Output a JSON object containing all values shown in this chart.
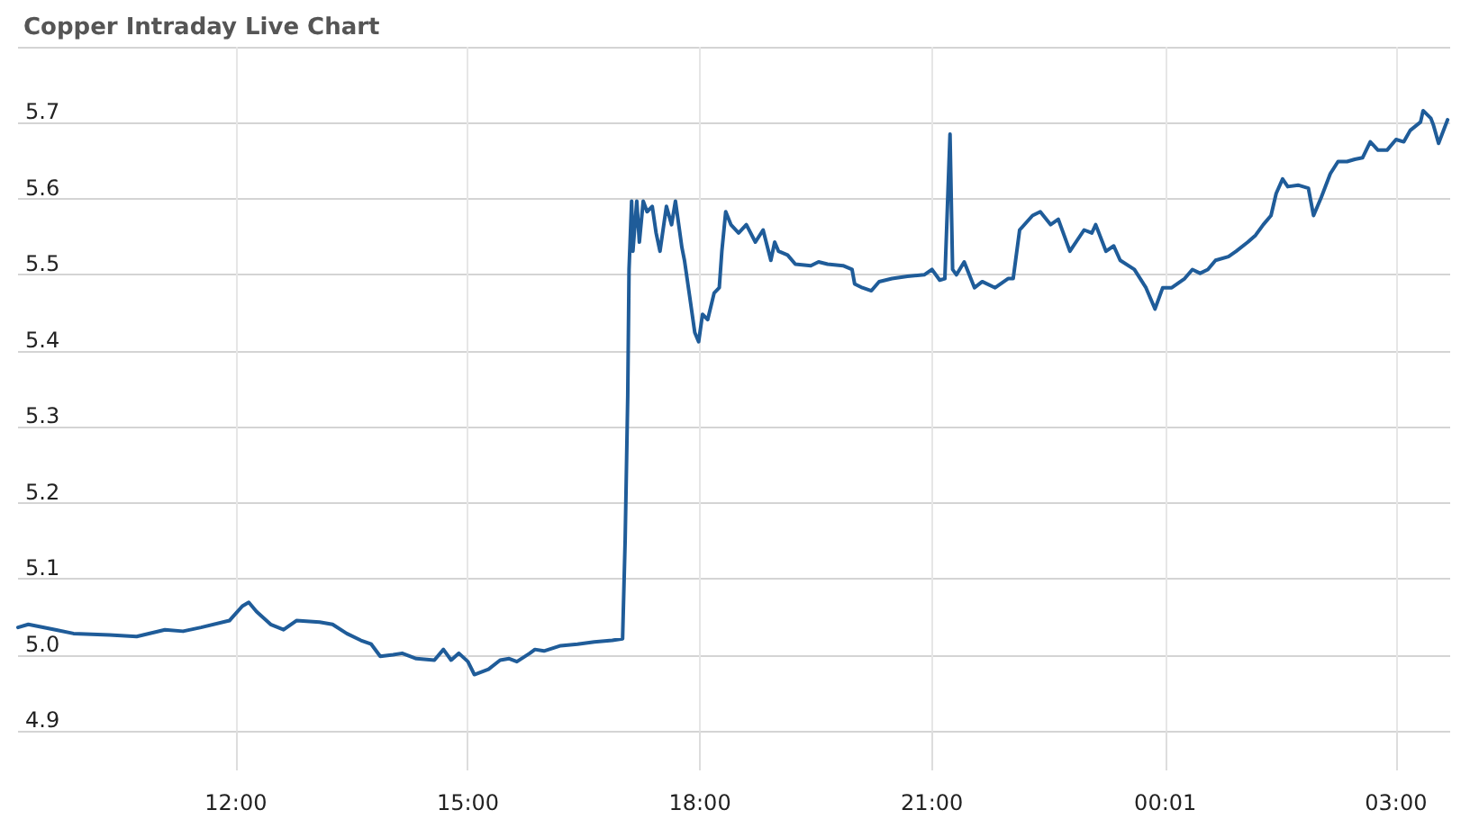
{
  "chart_data": {
    "type": "line",
    "title": "Copper Intraday Live Chart",
    "color": "#1f5c99",
    "grid": true,
    "marker": "none",
    "line_style": "solid",
    "xlim": [
      "--01-01T09:11",
      "--01-02T03:42"
    ],
    "xticks": [
      {
        "value": "--01-01T12:00",
        "label": "12:00"
      },
      {
        "value": "--01-01T15:00",
        "label": "15:00"
      },
      {
        "value": "--01-01T18:00",
        "label": "18:00"
      },
      {
        "value": "--01-01T21:00",
        "label": "21:00"
      },
      {
        "value": "--01-02T00:01",
        "label": "00:01"
      },
      {
        "value": "--01-02T03:00",
        "label": "03:00"
      }
    ],
    "ylim": [
      4.9,
      5.8
    ],
    "yticks": [
      4.9,
      {
        "value": 5.0,
        "label": "5.0"
      },
      5.1,
      5.2,
      5.3,
      5.4,
      5.5,
      5.6,
      5.7,
      {
        "value": 5.8,
        "label": null
      }
    ],
    "x": [
      "--01-01T09:11",
      "--01-01T09:19",
      "--01-01T09:40",
      "--01-01T09:54",
      "--01-01T10:22",
      "--01-01T10:43",
      "--01-01T11:05",
      "--01-01T11:19",
      "--01-01T11:33",
      "--01-01T11:55",
      "--01-01T12:05",
      "--01-01T12:10",
      "--01-01T12:16",
      "--01-01T12:27",
      "--01-01T12:37",
      "--01-01T12:47",
      "--01-01T13:05",
      "--01-01T13:15",
      "--01-01T13:26",
      "--01-01T13:37",
      "--01-01T13:45",
      "--01-01T13:52",
      "--01-01T14:02",
      "--01-01T14:09",
      "--01-01T14:20",
      "--01-01T14:34",
      "--01-01T14:41",
      "--01-01T14:47",
      "--01-01T14:53",
      "--01-01T15:00",
      "--01-01T15:05",
      "--01-01T15:16",
      "--01-01T15:25",
      "--01-01T15:32",
      "--01-01T15:38",
      "--01-01T15:48",
      "--01-01T15:52",
      "--01-01T15:59",
      "--01-01T16:12",
      "--01-01T16:25",
      "--01-01T16:38",
      "--01-01T16:52",
      "--01-01T17:00",
      "--01-01T17:02",
      "--01-01T17:04",
      "--01-01T17:05",
      "--01-01T17:07",
      "--01-01T17:08",
      "--01-01T17:11",
      "--01-01T17:13",
      "--01-01T17:16",
      "--01-01T17:19",
      "--01-01T17:23",
      "--01-01T17:26",
      "--01-01T17:29",
      "--01-01T17:34",
      "--01-01T17:38",
      "--01-01T17:41",
      "--01-01T17:46",
      "--01-01T17:48",
      "--01-01T17:52",
      "--01-01T17:56",
      "--01-01T17:59",
      "--01-01T18:02",
      "--01-01T18:06",
      "--01-01T18:11",
      "--01-01T18:15",
      "--01-01T18:17",
      "--01-01T18:20",
      "--01-01T18:24",
      "--01-01T18:30",
      "--01-01T18:36",
      "--01-01T18:43",
      "--01-01T18:49",
      "--01-01T18:55",
      "--01-01T18:58",
      "--01-01T19:01",
      "--01-01T19:08",
      "--01-01T19:14",
      "--01-01T19:26",
      "--01-01T19:32",
      "--01-01T19:39",
      "--01-01T19:51",
      "--01-01T19:58",
      "--01-01T20:00",
      "--01-01T20:06",
      "--01-01T20:13",
      "--01-01T20:19",
      "--01-01T20:29",
      "--01-01T20:41",
      "--01-01T20:54",
      "--01-01T21:00",
      "--01-01T21:06",
      "--01-01T21:10",
      "--01-01T21:14",
      "--01-01T21:16",
      "--01-01T21:19",
      "--01-01T21:25",
      "--01-01T21:33",
      "--01-01T21:39",
      "--01-01T21:49",
      "--01-01T21:59",
      "--01-01T22:03",
      "--01-01T22:08",
      "--01-01T22:18",
      "--01-01T22:24",
      "--01-01T22:32",
      "--01-01T22:38",
      "--01-01T22:47",
      "--01-01T22:58",
      "--01-01T23:04",
      "--01-01T23:07",
      "--01-01T23:15",
      "--01-01T23:21",
      "--01-01T23:26",
      "--01-01T23:37",
      "--01-01T23:46",
      "--01-01T23:53",
      "--01-01T23:59",
      "--01-02T00:06",
      "--01-02T00:16",
      "--01-02T00:22",
      "--01-02T00:28",
      "--01-02T00:34",
      "--01-02T00:40",
      "--01-02T00:50",
      "--01-02T00:56",
      "--01-02T01:05",
      "--01-02T01:11",
      "--01-02T01:17",
      "--01-02T01:23",
      "--01-02T01:27",
      "--01-02T01:32",
      "--01-02T01:36",
      "--01-02T01:44",
      "--01-02T01:52",
      "--01-02T01:56",
      "--01-02T02:02",
      "--01-02T02:09",
      "--01-02T02:15",
      "--01-02T02:22",
      "--01-02T02:28",
      "--01-02T02:34",
      "--01-02T02:40",
      "--01-02T02:46",
      "--01-02T02:53",
      "--01-02T03:00",
      "--01-02T03:06",
      "--01-02T03:11",
      "--01-02T03:19",
      "--01-02T03:21",
      "--01-02T03:27",
      "--01-02T03:29",
      "--01-02T03:33",
      "--01-02T03:40"
    ],
    "values": [
      5.036,
      5.04,
      5.033,
      5.028,
      5.026,
      5.024,
      5.033,
      5.031,
      5.036,
      5.045,
      5.064,
      5.069,
      5.057,
      5.04,
      5.033,
      5.045,
      5.043,
      5.04,
      5.028,
      5.019,
      5.014,
      4.998,
      5.0,
      5.002,
      4.995,
      4.993,
      5.007,
      4.993,
      5.002,
      4.991,
      4.974,
      4.981,
      4.993,
      4.995,
      4.991,
      5.002,
      5.007,
      5.005,
      5.012,
      5.014,
      5.017,
      5.019,
      5.021,
      5.152,
      5.341,
      5.507,
      5.597,
      5.531,
      5.597,
      5.543,
      5.597,
      5.583,
      5.59,
      5.555,
      5.531,
      5.59,
      5.566,
      5.597,
      5.536,
      5.519,
      5.472,
      5.424,
      5.412,
      5.448,
      5.441,
      5.476,
      5.483,
      5.531,
      5.583,
      5.566,
      5.555,
      5.566,
      5.543,
      5.559,
      5.519,
      5.543,
      5.531,
      5.526,
      5.514,
      5.512,
      5.517,
      5.514,
      5.512,
      5.507,
      5.488,
      5.483,
      5.479,
      5.491,
      5.495,
      5.498,
      5.5,
      5.507,
      5.493,
      5.495,
      5.685,
      5.507,
      5.5,
      5.517,
      5.483,
      5.491,
      5.483,
      5.495,
      5.495,
      5.559,
      5.578,
      5.583,
      5.566,
      5.573,
      5.531,
      5.559,
      5.555,
      5.566,
      5.531,
      5.538,
      5.519,
      5.507,
      5.483,
      5.455,
      5.483,
      5.483,
      5.495,
      5.507,
      5.502,
      5.507,
      5.519,
      5.524,
      5.531,
      5.543,
      5.552,
      5.566,
      5.578,
      5.607,
      5.626,
      5.616,
      5.618,
      5.614,
      5.578,
      5.602,
      5.633,
      5.649,
      5.649,
      5.652,
      5.654,
      5.675,
      5.664,
      5.664,
      5.678,
      5.675,
      5.69,
      5.701,
      5.716,
      5.706,
      5.697,
      5.673,
      5.704
    ]
  }
}
